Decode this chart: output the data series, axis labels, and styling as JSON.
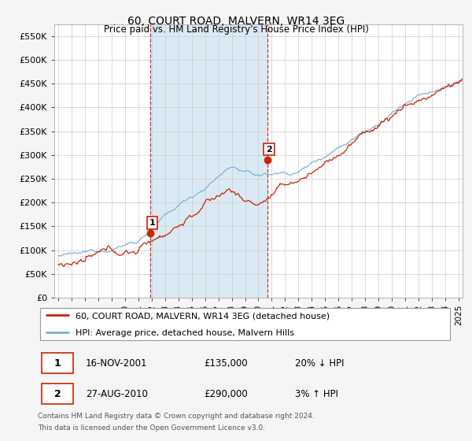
{
  "title": "60, COURT ROAD, MALVERN, WR14 3EG",
  "subtitle": "Price paid vs. HM Land Registry's House Price Index (HPI)",
  "ylabel_ticks": [
    "£0",
    "£50K",
    "£100K",
    "£150K",
    "£200K",
    "£250K",
    "£300K",
    "£350K",
    "£400K",
    "£450K",
    "£500K",
    "£550K"
  ],
  "ylim": [
    0,
    575000
  ],
  "xlim_start": 1994.7,
  "xlim_end": 2025.3,
  "legend_line1": "60, COURT ROAD, MALVERN, WR14 3EG (detached house)",
  "legend_line2": "HPI: Average price, detached house, Malvern Hills",
  "transaction1_date": "16-NOV-2001",
  "transaction1_price": "£135,000",
  "transaction1_hpi": "20% ↓ HPI",
  "transaction1_x": 2001.88,
  "transaction1_y": 135000,
  "transaction2_date": "27-AUG-2010",
  "transaction2_price": "£290,000",
  "transaction2_hpi": "3% ↑ HPI",
  "transaction2_x": 2010.65,
  "transaction2_y": 290000,
  "footnote1": "Contains HM Land Registry data © Crown copyright and database right 2024.",
  "footnote2": "This data is licensed under the Open Government Licence v3.0.",
  "hpi_color": "#7eadd4",
  "price_color": "#cc2200",
  "vline_color": "#cc3333",
  "shade_color": "#daeaf5",
  "plot_bg_color": "#ffffff",
  "grid_color": "#cccccc",
  "fig_bg_color": "#f5f5f5"
}
